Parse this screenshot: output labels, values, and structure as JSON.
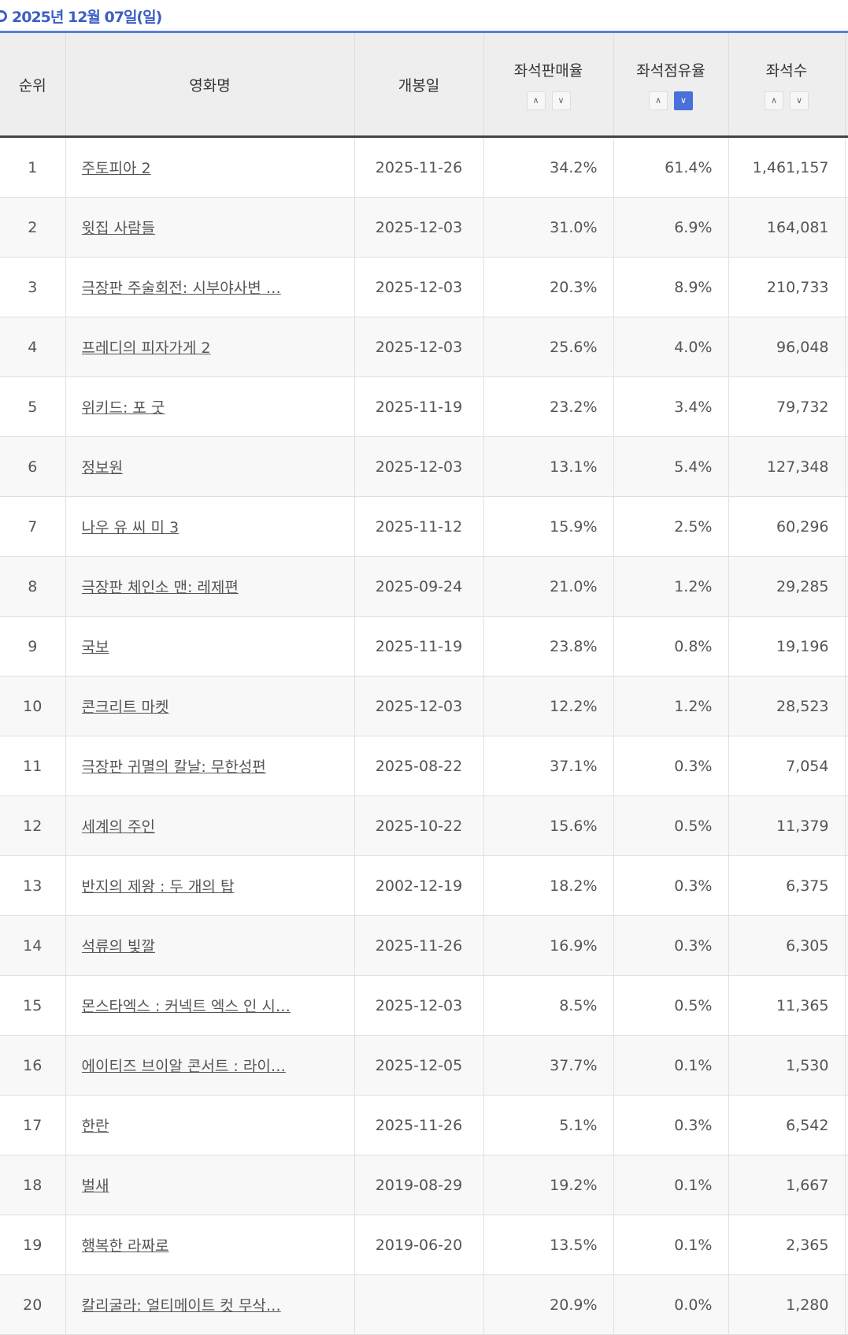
{
  "date_title": "2025년 12월 07일(일)",
  "headers": {
    "rank": "순위",
    "title": "영화명",
    "release": "개봉일",
    "sales_rate": "좌석판매율",
    "share": "좌석점유율",
    "seats": "좌석수"
  },
  "sort_icons": {
    "up": "∧",
    "down": "∨"
  },
  "active_sort": "좌석점유율-desc",
  "accent_color": "#4a70d9",
  "rows": [
    {
      "rank": "1",
      "title": "주토피아 2",
      "release": "2025-11-26",
      "sales_rate": "34.2%",
      "share": "61.4%",
      "seats": "1,461,157"
    },
    {
      "rank": "2",
      "title": "윗집 사람들",
      "release": "2025-12-03",
      "sales_rate": "31.0%",
      "share": "6.9%",
      "seats": "164,081"
    },
    {
      "rank": "3",
      "title": "극장판 주술회전: 시부야사변 …",
      "release": "2025-12-03",
      "sales_rate": "20.3%",
      "share": "8.9%",
      "seats": "210,733"
    },
    {
      "rank": "4",
      "title": "프레디의 피자가게 2",
      "release": "2025-12-03",
      "sales_rate": "25.6%",
      "share": "4.0%",
      "seats": "96,048"
    },
    {
      "rank": "5",
      "title": "위키드: 포 굿",
      "release": "2025-11-19",
      "sales_rate": "23.2%",
      "share": "3.4%",
      "seats": "79,732"
    },
    {
      "rank": "6",
      "title": "정보원",
      "release": "2025-12-03",
      "sales_rate": "13.1%",
      "share": "5.4%",
      "seats": "127,348"
    },
    {
      "rank": "7",
      "title": "나우 유 씨 미 3",
      "release": "2025-11-12",
      "sales_rate": "15.9%",
      "share": "2.5%",
      "seats": "60,296"
    },
    {
      "rank": "8",
      "title": "극장판 체인소 맨: 레제편",
      "release": "2025-09-24",
      "sales_rate": "21.0%",
      "share": "1.2%",
      "seats": "29,285"
    },
    {
      "rank": "9",
      "title": "국보",
      "release": "2025-11-19",
      "sales_rate": "23.8%",
      "share": "0.8%",
      "seats": "19,196"
    },
    {
      "rank": "10",
      "title": "콘크리트 마켓",
      "release": "2025-12-03",
      "sales_rate": "12.2%",
      "share": "1.2%",
      "seats": "28,523"
    },
    {
      "rank": "11",
      "title": "극장판 귀멸의 칼날: 무한성편",
      "release": "2025-08-22",
      "sales_rate": "37.1%",
      "share": "0.3%",
      "seats": "7,054"
    },
    {
      "rank": "12",
      "title": "세계의 주인",
      "release": "2025-10-22",
      "sales_rate": "15.6%",
      "share": "0.5%",
      "seats": "11,379"
    },
    {
      "rank": "13",
      "title": "반지의 제왕 : 두 개의 탑",
      "release": "2002-12-19",
      "sales_rate": "18.2%",
      "share": "0.3%",
      "seats": "6,375"
    },
    {
      "rank": "14",
      "title": "석류의 빛깔",
      "release": "2025-11-26",
      "sales_rate": "16.9%",
      "share": "0.3%",
      "seats": "6,305"
    },
    {
      "rank": "15",
      "title": "몬스타엑스 : 커넥트 엑스 인 시…",
      "release": "2025-12-03",
      "sales_rate": "8.5%",
      "share": "0.5%",
      "seats": "11,365"
    },
    {
      "rank": "16",
      "title": "에이티즈 브이알 콘서트 : 라이…",
      "release": "2025-12-05",
      "sales_rate": "37.7%",
      "share": "0.1%",
      "seats": "1,530"
    },
    {
      "rank": "17",
      "title": "한란",
      "release": "2025-11-26",
      "sales_rate": "5.1%",
      "share": "0.3%",
      "seats": "6,542"
    },
    {
      "rank": "18",
      "title": "벌새",
      "release": "2019-08-29",
      "sales_rate": "19.2%",
      "share": "0.1%",
      "seats": "1,667"
    },
    {
      "rank": "19",
      "title": "행복한 라짜로",
      "release": "2019-06-20",
      "sales_rate": "13.5%",
      "share": "0.1%",
      "seats": "2,365"
    },
    {
      "rank": "20",
      "title": "칼리굴라: 얼티메이트 컷 무삭…",
      "release": "",
      "sales_rate": "20.9%",
      "share": "0.0%",
      "seats": "1,280"
    }
  ]
}
